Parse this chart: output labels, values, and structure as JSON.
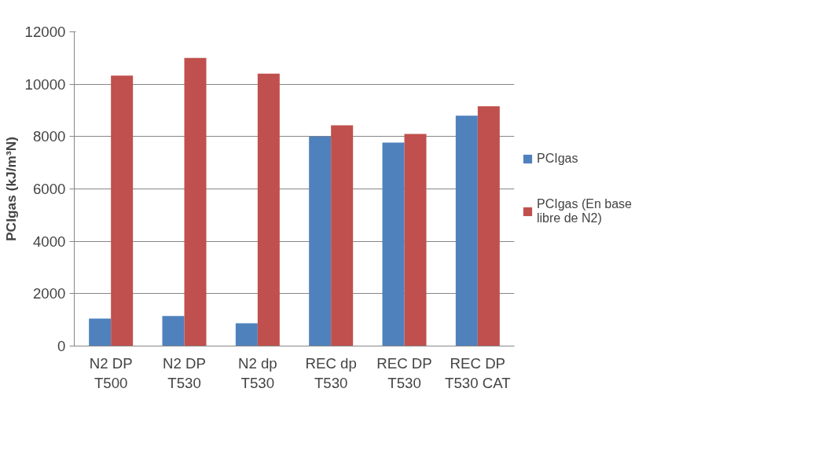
{
  "chart_data": {
    "type": "bar",
    "ylabel": "PCIgas (kJ/m³N)",
    "categories": [
      "N2 DP T500",
      "N2 DP T530",
      "N2 dp T530",
      "REC dp T530",
      "REC DP T530",
      "REC DP T530 CAT"
    ],
    "series": [
      {
        "name": "PCIgas",
        "color": "#4f81bd",
        "values": [
          1050,
          1150,
          870,
          8000,
          7770,
          8800
        ]
      },
      {
        "name": "PCIgas (En base libre de N2)",
        "color": "#c0504d",
        "values": [
          10330,
          11000,
          10400,
          8430,
          8100,
          9160
        ]
      }
    ],
    "ylim": [
      0,
      12000
    ],
    "yticks": [
      0,
      2000,
      4000,
      6000,
      8000,
      10000,
      12000
    ],
    "grid": "y",
    "legend": "right"
  }
}
